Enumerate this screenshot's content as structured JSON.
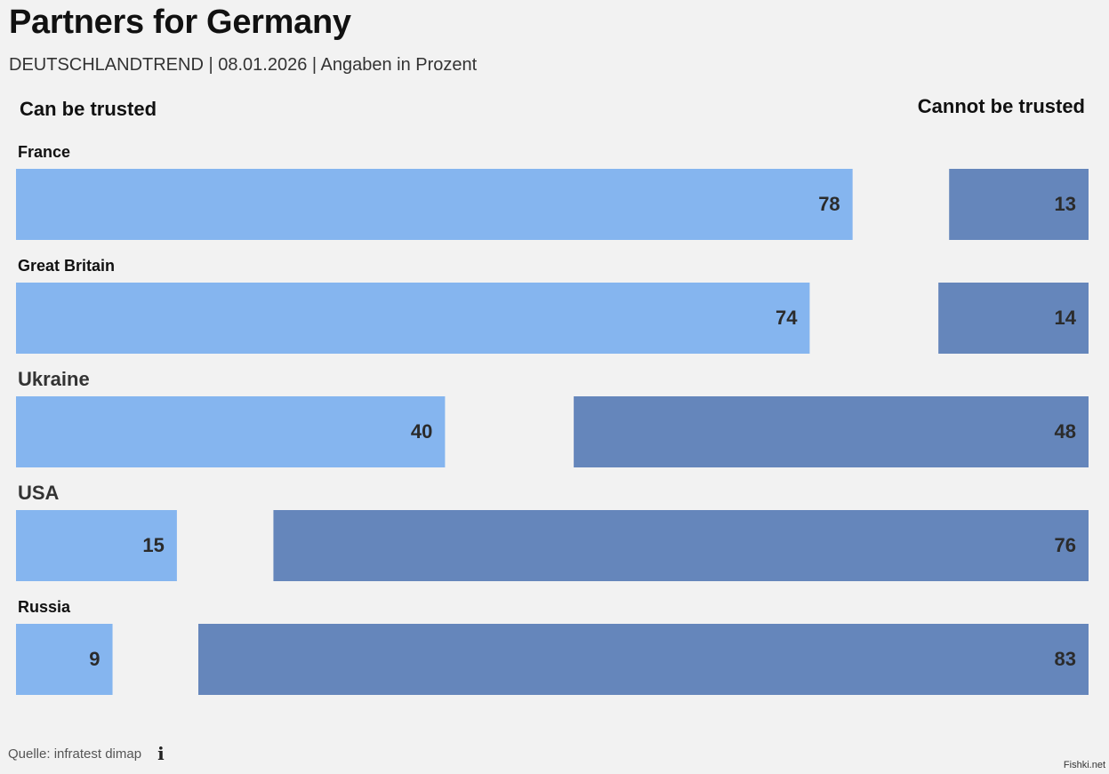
{
  "title": "Partners for Germany",
  "subtitle": "DEUTSCHLANDTREND | 08.01.2026 | Angaben in Prozent",
  "footer": {
    "source": "Quelle: infratest dimap",
    "info_icon": "info-icon"
  },
  "watermark": "Fishki.net",
  "colors": {
    "trusted": "#85b5ef",
    "not_trusted": "#6586bb",
    "background": "#f2f2f2",
    "value_text": "#2b2b2b"
  },
  "chart_data": {
    "type": "bar",
    "title": "Partners for Germany",
    "subtitle": "DEUTSCHLANDTREND | 08.01.2026 | Angaben in Prozent",
    "orientation": "horizontal-diverging",
    "categories": [
      "France",
      "Great Britain",
      "Ukraine",
      "USA",
      "Russia"
    ],
    "series": [
      {
        "name": "Can be trusted",
        "values": [
          78,
          74,
          40,
          15,
          9
        ],
        "color": "#85b5ef",
        "anchor": "left"
      },
      {
        "name": "Cannot be trusted",
        "values": [
          13,
          14,
          48,
          76,
          83
        ],
        "color": "#6586bb",
        "anchor": "right"
      }
    ],
    "xlim": [
      0,
      100
    ],
    "grid": false,
    "legend": "top"
  }
}
